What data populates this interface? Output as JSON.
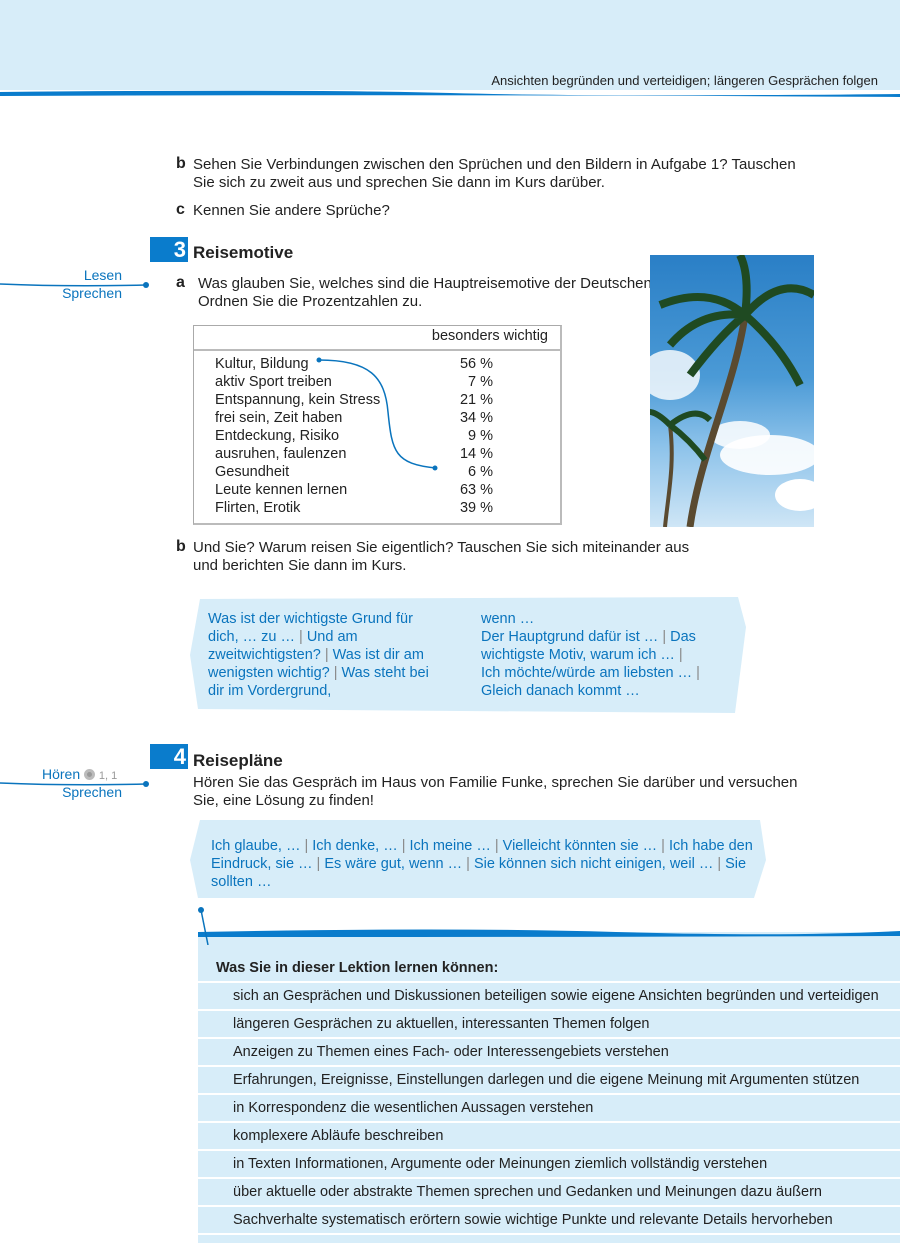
{
  "header": {
    "title": "Ansichten begründen und verteidigen; längeren Gesprächen folgen"
  },
  "task_b": {
    "label": "b",
    "text1": "Sehen Sie Verbindungen zwischen den Sprüchen und den Bildern in Aufgabe 1? Tauschen",
    "text2": "Sie sich zu zweit aus und sprechen Sie dann im Kurs darüber."
  },
  "task_c": {
    "label": "c",
    "text": "Kennen Sie andere Sprüche?"
  },
  "section3": {
    "number": "3",
    "title": "Reisemotive",
    "skills": [
      "Lesen",
      "Sprechen"
    ],
    "a": {
      "label": "a",
      "text1": "Was glauben Sie, welches sind die Hauptreisemotive der Deutschen?",
      "text2": "Ordnen Sie die Prozentzahlen zu."
    },
    "table": {
      "header": "besonders wichtig",
      "rows": [
        {
          "motive": "Kultur, Bildung",
          "value": "56 %"
        },
        {
          "motive": "aktiv Sport treiben",
          "value": "7 %"
        },
        {
          "motive": "Entspannung, kein Stress",
          "value": "21 %"
        },
        {
          "motive": "frei sein, Zeit haben",
          "value": "34 %"
        },
        {
          "motive": "Entdeckung, Risiko",
          "value": "9 %"
        },
        {
          "motive": "ausruhen, faulenzen",
          "value": "14 %"
        },
        {
          "motive": "Gesundheit",
          "value": "6 %"
        },
        {
          "motive": "Leute kennen lernen",
          "value": "63 %"
        },
        {
          "motive": "Flirten, Erotik",
          "value": "39 %"
        }
      ]
    },
    "b": {
      "label": "b",
      "text1": "Und Sie? Warum reisen Sie eigentlich? Tauschen Sie sich miteinander aus",
      "text2": "und berichten Sie dann im Kurs."
    },
    "phrases_left": [
      "Was ist der wichtigste Grund für",
      "dich, … zu …",
      "Und am",
      "zweitwichtigsten?",
      "Was ist dir am",
      "wenigsten wichtig?",
      "Was steht bei",
      "dir im Vordergrund,"
    ],
    "phrases_right": [
      "wenn …",
      "Der Hauptgrund dafür ist …",
      "Das",
      "wichtigste Motiv, warum ich …",
      "Ich möchte/würde am liebsten …",
      "Gleich danach kommt …"
    ]
  },
  "section4": {
    "number": "4",
    "title": "Reisepläne",
    "skills": [
      "Hören",
      "Sprechen"
    ],
    "cd": "1, 1",
    "text1": "Hören Sie das Gespräch im Haus von Familie Funke, sprechen Sie darüber und versuchen",
    "text2": "Sie, eine Lösung zu finden!",
    "phrases": [
      "Ich glaube, …",
      "Ich denke, …",
      "Ich meine …",
      "Vielleicht könnten sie …",
      "Ich habe den Eindruck, sie …",
      "Es wäre gut, wenn …",
      "Sie können sich nicht einigen, weil …",
      "Sie sollten …"
    ]
  },
  "learn": {
    "title": "Was Sie in dieser Lektion lernen können:",
    "items": [
      "sich an Gesprächen und Diskussionen beteiligen sowie eigene Ansichten begründen und verteidigen",
      "längeren Gesprächen zu aktuellen, interessanten Themen folgen",
      "Anzeigen zu Themen eines Fach- oder Interessengebiets verstehen",
      "Erfahrungen, Ereignisse, Einstellungen darlegen und die eigene Meinung mit Argumenten stützen",
      "in Korrespondenz die wesentlichen Aussagen verstehen",
      "komplexere Abläufe beschreiben",
      "in Texten Informationen, Argumente oder Meinungen ziemlich vollständig verstehen",
      "über aktuelle oder abstrakte Themen sprechen und Gedanken und Meinungen dazu äußern",
      "Sachverhalte systematisch erörtern sowie wichtige Punkte und relevante Details hervorheben"
    ]
  },
  "colors": {
    "accent": "#0a7ccc",
    "panel": "#d7edf9"
  }
}
